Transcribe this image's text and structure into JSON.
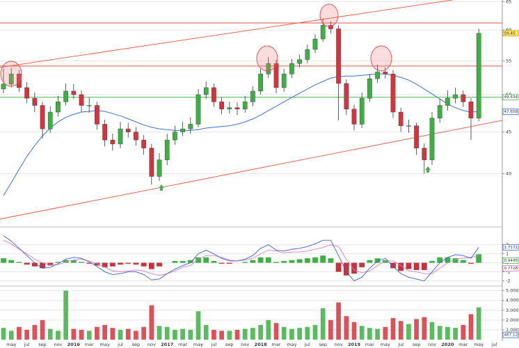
{
  "chart_data": [
    {
      "type": "candlestick",
      "log_scale": true,
      "grid": true,
      "up_color": "#3cb043",
      "down_color": "#d8323c",
      "x": [
        0,
        1,
        2,
        3,
        4,
        5,
        6,
        7,
        8,
        9,
        10,
        11,
        12,
        13,
        14,
        15,
        16,
        17,
        18,
        19,
        20,
        21,
        22,
        23,
        24,
        25,
        26,
        27,
        28,
        29,
        30,
        31,
        32,
        33,
        34,
        35,
        36,
        37,
        38,
        39,
        40,
        41,
        42,
        43,
        44,
        45,
        46,
        47,
        48,
        49,
        50,
        51,
        52,
        53,
        54,
        55,
        56,
        57,
        58,
        59,
        60,
        61
      ],
      "open": [
        50.8,
        51.5,
        53,
        51,
        49.5,
        48.5,
        45.4,
        47.6,
        49,
        50.5,
        50,
        48.5,
        48.5,
        46,
        44,
        43.5,
        45.4,
        45,
        44,
        43,
        39.7,
        41.6,
        44,
        45,
        45.4,
        46,
        50,
        51,
        49,
        48,
        48.2,
        48,
        49,
        50.5,
        53,
        54.6,
        51,
        53,
        54.6,
        55.2,
        56.8,
        58.5,
        60.8,
        60.2,
        51.6,
        48,
        46,
        49.5,
        52.3,
        53.3,
        53,
        47.6,
        45.8,
        45.8,
        43,
        41.6,
        46.8,
        48.5,
        49.5,
        50,
        49,
        46.8
      ],
      "high": [
        53.8,
        53.9,
        53.6,
        51.8,
        50.3,
        49.0,
        48.4,
        49.8,
        51.6,
        51.5,
        50.6,
        49.6,
        49.0,
        46.6,
        44.8,
        46.3,
        46.2,
        45.6,
        44.6,
        43.5,
        42.4,
        44.8,
        45.8,
        46.3,
        46.9,
        50.8,
        51.9,
        51.6,
        49.6,
        49.0,
        48.9,
        49.8,
        51.2,
        53.8,
        55.6,
        55.2,
        53.8,
        55.3,
        56.0,
        57.6,
        59.3,
        62.0,
        61.5,
        60.8,
        52.2,
        48.6,
        50.3,
        53.0,
        54.4,
        54.0,
        53.6,
        48.2,
        46.6,
        46.2,
        43.6,
        47.6,
        49.4,
        50.6,
        51.0,
        50.6,
        49.5,
        60.2
      ],
      "low": [
        50.2,
        51.0,
        50.4,
        48.8,
        47.6,
        44.2,
        44.9,
        47.0,
        48.5,
        49.4,
        47.6,
        47.5,
        45.3,
        43.2,
        42.7,
        43.0,
        44.3,
        43.3,
        42.2,
        38.8,
        39.2,
        41.0,
        43.4,
        44.5,
        44.8,
        45.6,
        49.4,
        48.3,
        47.3,
        47.4,
        47.2,
        47.5,
        48.4,
        50.0,
        52.4,
        50.2,
        50.4,
        52.4,
        54.0,
        54.6,
        56.2,
        58.0,
        59.4,
        46.5,
        47.2,
        45.2,
        45.5,
        49.0,
        51.7,
        52.3,
        46.8,
        45.0,
        44.9,
        42.2,
        40.0,
        41.0,
        46.2,
        47.8,
        48.8,
        48.3,
        44.0,
        46.4
      ],
      "close": [
        51.5,
        53,
        51,
        49.5,
        48.5,
        45.4,
        47.6,
        49,
        50.5,
        50,
        48.5,
        48.5,
        46,
        44,
        43.5,
        45.4,
        45,
        44,
        43,
        39.7,
        41.6,
        44,
        45,
        45.4,
        46,
        50,
        51,
        49,
        48,
        48.2,
        48,
        49,
        50.5,
        53,
        54.6,
        51,
        53,
        54.6,
        55.2,
        56.8,
        58.5,
        60.8,
        60.2,
        51.6,
        48,
        46,
        49.5,
        52.3,
        53.3,
        53,
        47.6,
        45.8,
        45.8,
        43,
        41.6,
        46.8,
        48.5,
        49.5,
        50,
        49,
        46.8,
        59.45
      ],
      "ylim": [
        34.5,
        65.3
      ],
      "yticks": [
        65,
        60,
        55,
        50,
        45,
        40
      ],
      "ma": {
        "color": "#3b6fd6",
        "values": [
          37.6,
          39.0,
          40.5,
          42,
          43.3,
          44.5,
          45.5,
          46.3,
          46.9,
          47.3,
          47.6,
          47.7,
          47.8,
          47.7,
          47.4,
          47.1,
          46.7,
          46.3,
          45.9,
          45.6,
          45.4,
          45.3,
          45.2,
          45.2,
          45.2,
          45.3,
          45.5,
          45.6,
          45.7,
          45.8,
          46,
          46.3,
          46.7,
          47.2,
          47.8,
          48.4,
          49,
          49.6,
          50.2,
          50.8,
          51.4,
          51.9,
          52.4,
          52.6,
          52.7,
          52.7,
          52.8,
          52.9,
          53,
          53,
          52.8,
          52.5,
          52.1,
          51.5,
          50.8,
          50.1,
          49.4,
          48.7,
          48.2,
          47.8,
          47.6,
          47.658
        ]
      },
      "levels": [
        {
          "value": 61.2,
          "color": "#e8513f"
        },
        {
          "value": 54.2,
          "color": "#e8513f"
        },
        {
          "value": 49.634,
          "color": "#4caf50"
        }
      ],
      "trendlines": [
        {
          "x": [
            -0.45,
            57.6
          ],
          "values": [
            54.0,
            65.3
          ],
          "color": "#e8513f"
        },
        {
          "x": [
            -0.45,
            64.02
          ],
          "values": [
            35.2,
            46.5
          ],
          "color": "#e8513f"
        }
      ],
      "last_close_color": "#ffe36a"
    },
    {
      "type": "macd",
      "ylim": [
        -2.5,
        3.9
      ],
      "yticks": [
        2,
        1,
        0,
        -1,
        -2
      ],
      "up_color": "#3cb043",
      "down_color": "#c8323c",
      "macd": {
        "color": "#3b5fd0",
        "values": [
          3,
          2.4,
          1.6,
          0.8,
          0,
          -0.6,
          -0.5,
          -0.1,
          0.4,
          0.6,
          0.5,
          0.1,
          -0.4,
          -1,
          -1.3,
          -1.2,
          -1,
          -1,
          -1.3,
          -1.9,
          -1.8,
          -1.2,
          -0.7,
          -0.3,
          0,
          1,
          1.4,
          1,
          0.5,
          0.2,
          0.2,
          0.4,
          0.8,
          1.6,
          2,
          1.4,
          1.3,
          1.5,
          1.6,
          1.8,
          2.1,
          2.5,
          2.5,
          0.8,
          -1,
          -2,
          -1.6,
          -0.6,
          0.2,
          0.5,
          -0.4,
          -1.2,
          -1.6,
          -1.8,
          -2,
          -1,
          0,
          0.6,
          0.9,
          0.8,
          0.5,
          1.7171
        ]
      },
      "signal": {
        "color": "#d67fc4",
        "values": [
          2.5,
          2.1,
          1.5,
          1.0,
          0.4,
          0,
          -0.2,
          -0.2,
          0.1,
          0.3,
          0.4,
          0.2,
          -0.1,
          -0.5,
          -0.9,
          -1,
          -0.9,
          -0.8,
          -0.9,
          -1.2,
          -1.4,
          -1.2,
          -0.9,
          -0.5,
          -0.3,
          0.4,
          0.8,
          0.8,
          0.6,
          0.3,
          0.2,
          0.3,
          0.5,
          1,
          1.4,
          1.3,
          1.1,
          1.2,
          1.2,
          1.3,
          1.5,
          1.7,
          2,
          1.8,
          0.4,
          -0.8,
          -1.1,
          -0.9,
          -0.3,
          0.2,
          0.2,
          -0.3,
          -0.9,
          -1,
          -1.2,
          -1.2,
          -0.6,
          0,
          0.4,
          0.5,
          0.6,
          0.7728
        ]
      },
      "histogram": [
        0.5,
        0.3,
        0.1,
        -0.2,
        -0.4,
        -0.6,
        -0.3,
        0.1,
        0.3,
        0.3,
        0.1,
        -0.1,
        -0.3,
        -0.5,
        -0.4,
        -0.2,
        -0.1,
        -0.2,
        -0.4,
        -0.7,
        -0.4,
        0,
        0.2,
        0.2,
        0.3,
        0.6,
        0.6,
        0.2,
        -0.1,
        -0.1,
        0,
        0.1,
        0.3,
        0.6,
        0.6,
        0.1,
        0.2,
        0.3,
        0.4,
        0.5,
        0.6,
        0.8,
        0.5,
        -1.0,
        -1.4,
        -1.2,
        -0.5,
        0.3,
        0.5,
        0.3,
        -0.6,
        -0.9,
        -0.7,
        -0.8,
        -0.8,
        0.2,
        0.6,
        0.6,
        0.5,
        0.3,
        -0.1,
        0.9445
      ]
    },
    {
      "type": "bar",
      "ylim": [
        0,
        5400
      ],
      "yticks": [
        {
          "value": 5000,
          "label": "5.000k"
        },
        {
          "value": 4000,
          "label": "4.000k"
        },
        {
          "value": 3000,
          "label": "3.000k"
        },
        {
          "value": 2000,
          "label": "2.000k"
        },
        {
          "value": 1000,
          "label": "1.000k"
        }
      ],
      "values": [
        1200,
        900,
        1300,
        1000,
        1500,
        2000,
        1100,
        900,
        5000,
        1100,
        1000,
        900,
        1300,
        1500,
        1200,
        1000,
        1100,
        900,
        1300,
        3500,
        1400,
        1300,
        1000,
        1100,
        1000,
        2900,
        1500,
        1000,
        900,
        900,
        1000,
        1100,
        1200,
        1500,
        2000,
        1700,
        1300,
        1100,
        1200,
        1300,
        1500,
        3200,
        2000,
        3800,
        2400,
        1800,
        1400,
        1200,
        1100,
        1300,
        2200,
        1900,
        1600,
        2100,
        2300,
        1800,
        1400,
        1300,
        1200,
        1500,
        2600,
        3300
      ],
      "up_color": "#3cb043",
      "down_color": "#d8323c",
      "marker": {
        "value": 487.125,
        "color": "#3b6fd6"
      },
      "xlim": [
        -0.45,
        64.02
      ],
      "xticks": [
        {
          "value": 1,
          "label": "may"
        },
        {
          "value": 3,
          "label": "jul"
        },
        {
          "value": 5,
          "label": "sep"
        },
        {
          "value": 7,
          "label": "nov"
        },
        {
          "value": 9,
          "label": "2016"
        },
        {
          "value": 11,
          "label": "mar"
        },
        {
          "value": 13,
          "label": "may"
        },
        {
          "value": 15,
          "label": "jul"
        },
        {
          "value": 17,
          "label": "sep"
        },
        {
          "value": 19,
          "label": "nov"
        },
        {
          "value": 21,
          "label": "2017"
        },
        {
          "value": 23,
          "label": "mar"
        },
        {
          "value": 25,
          "label": "may"
        },
        {
          "value": 27,
          "label": "jul"
        },
        {
          "value": 29,
          "label": "sep"
        },
        {
          "value": 31,
          "label": "nov"
        },
        {
          "value": 33,
          "label": "2018"
        },
        {
          "value": 35,
          "label": "mar"
        },
        {
          "value": 37,
          "label": "may"
        },
        {
          "value": 39,
          "label": "jul"
        },
        {
          "value": 41,
          "label": "sep"
        },
        {
          "value": 43,
          "label": "nov"
        },
        {
          "value": 45,
          "label": "2019"
        },
        {
          "value": 47,
          "label": "mar"
        },
        {
          "value": 49,
          "label": "may"
        },
        {
          "value": 51,
          "label": "jul"
        },
        {
          "value": 53,
          "label": "sep"
        },
        {
          "value": 55,
          "label": "nov"
        },
        {
          "value": 57,
          "label": "2020"
        },
        {
          "value": 59,
          "label": "mar"
        },
        {
          "value": 61,
          "label": "may"
        },
        {
          "value": 63,
          "label": "jul"
        }
      ]
    }
  ]
}
